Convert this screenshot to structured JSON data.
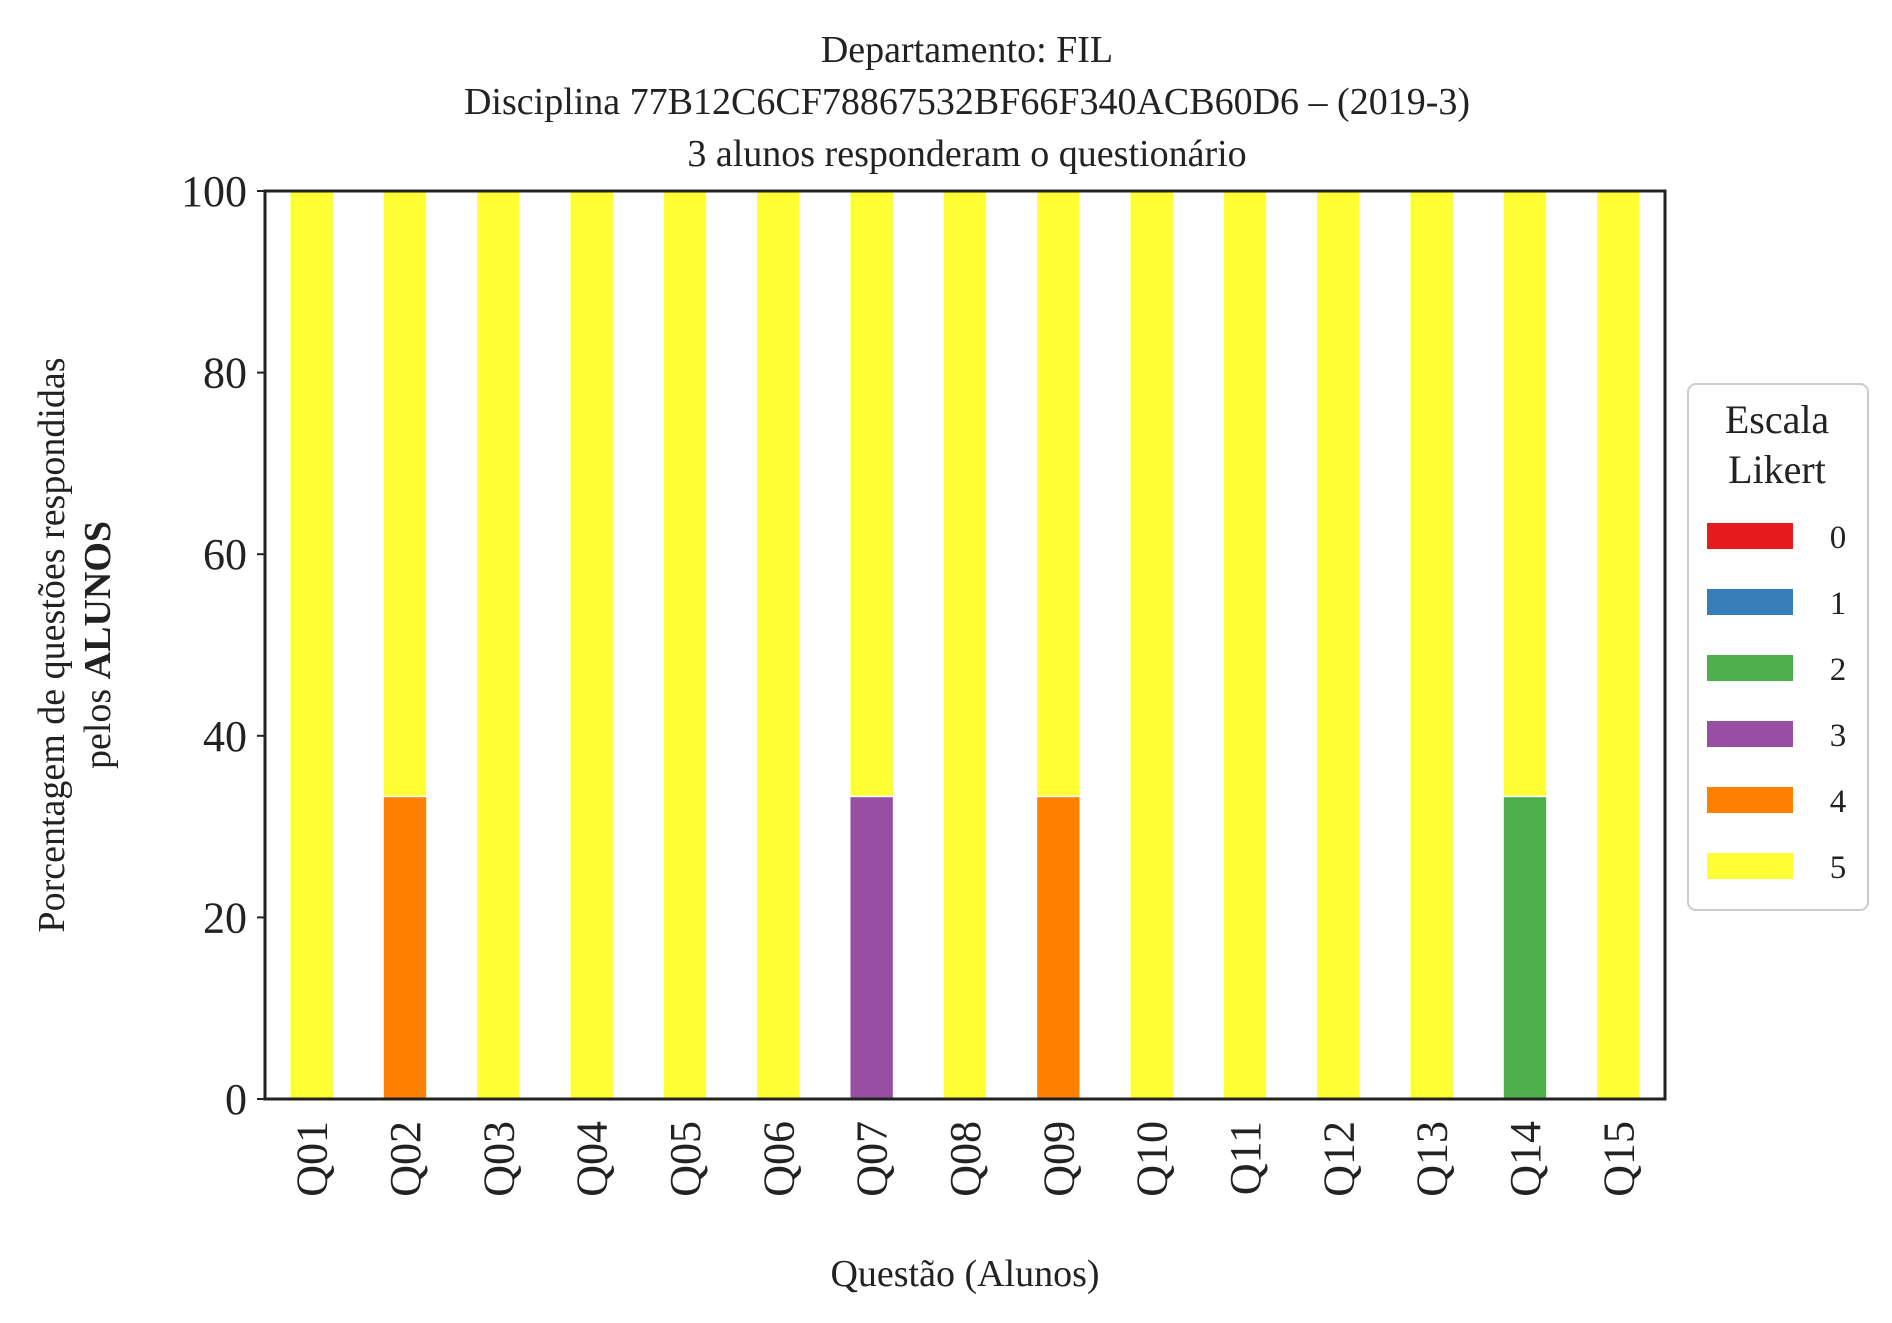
{
  "chart_data": {
    "type": "bar",
    "stacked": true,
    "title_lines": [
      "Departamento: FIL",
      "Disciplina 77B12C6CF78867532BF66F340ACB60D6 – (2019-3)",
      "3 alunos responderam o questionário"
    ],
    "xlabel": "Questão (Alunos)",
    "ylabel_line1": "Porcentagem de questões respondidas",
    "ylabel_line2_prefix": "pelos ",
    "ylabel_line2_bold": "ALUNOS",
    "ylim": [
      0,
      100
    ],
    "yticks": [
      0,
      20,
      40,
      60,
      80,
      100
    ],
    "grid": false,
    "legend": {
      "title_lines": [
        "Escala",
        "Likert"
      ],
      "placement": "right-center"
    },
    "categories": [
      "Q01",
      "Q02",
      "Q03",
      "Q04",
      "Q05",
      "Q06",
      "Q07",
      "Q08",
      "Q09",
      "Q10",
      "Q11",
      "Q12",
      "Q13",
      "Q14",
      "Q15"
    ],
    "series": [
      {
        "name": "0",
        "color": "#e41a1c",
        "values": [
          0,
          0,
          0,
          0,
          0,
          0,
          0,
          0,
          0,
          0,
          0,
          0,
          0,
          0,
          0
        ]
      },
      {
        "name": "1",
        "color": "#377eb8",
        "values": [
          0,
          0,
          0,
          0,
          0,
          0,
          0,
          0,
          0,
          0,
          0,
          0,
          0,
          0,
          0
        ]
      },
      {
        "name": "2",
        "color": "#4daf4a",
        "values": [
          0,
          0,
          0,
          0,
          0,
          0,
          0,
          0,
          0,
          0,
          0,
          0,
          0,
          33.33,
          0
        ]
      },
      {
        "name": "3",
        "color": "#984ea3",
        "values": [
          0,
          0,
          0,
          0,
          0,
          0,
          33.33,
          0,
          0,
          0,
          0,
          0,
          0,
          0,
          0
        ]
      },
      {
        "name": "4",
        "color": "#ff7f00",
        "values": [
          0,
          33.33,
          0,
          0,
          0,
          0,
          0,
          0,
          33.33,
          0,
          0,
          0,
          0,
          0,
          0
        ]
      },
      {
        "name": "5",
        "color": "#ffff33",
        "values": [
          100,
          66.67,
          100,
          100,
          100,
          100,
          66.67,
          100,
          66.67,
          100,
          100,
          100,
          100,
          66.67,
          100
        ]
      }
    ]
  }
}
